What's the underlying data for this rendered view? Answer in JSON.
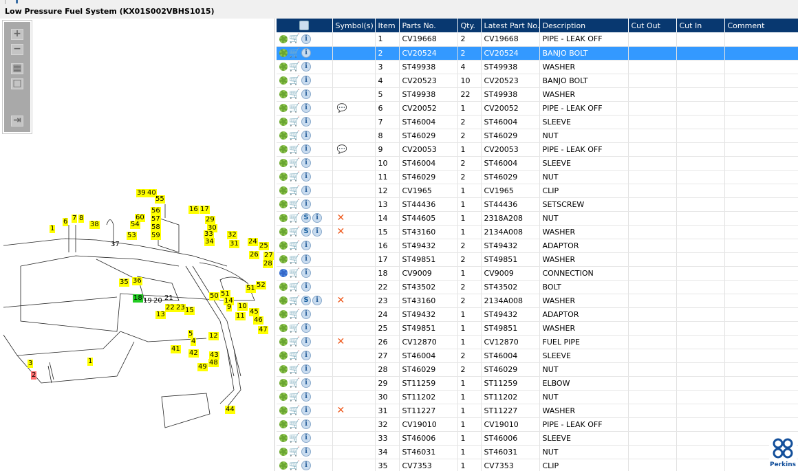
{
  "window": {
    "title": "Low Pressure Fuel System (KX01S002VBHS1015)"
  },
  "toolbar": {
    "zoom_in": "+",
    "zoom_out": "−",
    "fit": "▦",
    "actual": "□",
    "export": "⇥"
  },
  "diagram": {
    "callouts": [
      "1",
      "6",
      "7",
      "8",
      "38",
      "39",
      "40",
      "55",
      "56",
      "60",
      "54",
      "57",
      "58",
      "53",
      "59",
      "16",
      "17",
      "29",
      "30",
      "33",
      "34",
      "32",
      "31",
      "24",
      "25",
      "26",
      "27",
      "28",
      "35",
      "36",
      "37",
      "18",
      "19",
      "20",
      "21",
      "22",
      "23",
      "50",
      "51",
      "51",
      "52",
      "14",
      "9",
      "10",
      "13",
      "15",
      "11",
      "45",
      "46",
      "47",
      "5",
      "4",
      "12",
      "41",
      "42",
      "43",
      "48",
      "49",
      "44",
      "3",
      "2",
      "1"
    ]
  },
  "table": {
    "headers": [
      "",
      "Symbol(s)",
      "Item",
      "Parts No.",
      "Qty.",
      "Latest Part No.",
      "Description",
      "Cut Out",
      "Cut In",
      "Comment"
    ],
    "selected_item": "2",
    "rows": [
      {
        "item": "1",
        "part": "CV19668",
        "qty": "2",
        "latest": "CV19668",
        "desc": "PIPE - LEAK OFF"
      },
      {
        "item": "2",
        "part": "CV20524",
        "qty": "2",
        "latest": "CV20524",
        "desc": "BANJO BOLT"
      },
      {
        "item": "3",
        "part": "ST49938",
        "qty": "4",
        "latest": "ST49938",
        "desc": "WASHER"
      },
      {
        "item": "4",
        "part": "CV20523",
        "qty": "10",
        "latest": "CV20523",
        "desc": "BANJO BOLT"
      },
      {
        "item": "5",
        "part": "ST49938",
        "qty": "22",
        "latest": "ST49938",
        "desc": "WASHER"
      },
      {
        "item": "6",
        "part": "CV20052",
        "qty": "1",
        "latest": "CV20052",
        "desc": "PIPE - LEAK OFF",
        "symbol": "note"
      },
      {
        "item": "7",
        "part": "ST46004",
        "qty": "2",
        "latest": "ST46004",
        "desc": "SLEEVE"
      },
      {
        "item": "8",
        "part": "ST46029",
        "qty": "2",
        "latest": "ST46029",
        "desc": "NUT"
      },
      {
        "item": "9",
        "part": "CV20053",
        "qty": "1",
        "latest": "CV20053",
        "desc": "PIPE - LEAK OFF",
        "symbol": "note"
      },
      {
        "item": "10",
        "part": "ST46004",
        "qty": "2",
        "latest": "ST46004",
        "desc": "SLEEVE"
      },
      {
        "item": "11",
        "part": "ST46029",
        "qty": "2",
        "latest": "ST46029",
        "desc": "NUT"
      },
      {
        "item": "12",
        "part": "CV1965",
        "qty": "1",
        "latest": "CV1965",
        "desc": "CLIP"
      },
      {
        "item": "13",
        "part": "ST44436",
        "qty": "1",
        "latest": "ST44436",
        "desc": "SETSCREW"
      },
      {
        "item": "14",
        "part": "ST44605",
        "qty": "1",
        "latest": "2318A208",
        "desc": "NUT",
        "symbol": "x",
        "s": true
      },
      {
        "item": "15",
        "part": "ST43160",
        "qty": "1",
        "latest": "2134A008",
        "desc": "WASHER",
        "symbol": "x",
        "s": true
      },
      {
        "item": "16",
        "part": "ST49432",
        "qty": "2",
        "latest": "ST49432",
        "desc": "ADAPTOR"
      },
      {
        "item": "17",
        "part": "ST49851",
        "qty": "2",
        "latest": "ST49851",
        "desc": "WASHER"
      },
      {
        "item": "18",
        "part": "CV9009",
        "qty": "1",
        "latest": "CV9009",
        "desc": "CONNECTION",
        "assembly": true
      },
      {
        "item": "22",
        "part": "ST43502",
        "qty": "2",
        "latest": "ST43502",
        "desc": "BOLT"
      },
      {
        "item": "23",
        "part": "ST43160",
        "qty": "2",
        "latest": "2134A008",
        "desc": "WASHER",
        "symbol": "x",
        "s": true
      },
      {
        "item": "24",
        "part": "ST49432",
        "qty": "1",
        "latest": "ST49432",
        "desc": "ADAPTOR"
      },
      {
        "item": "25",
        "part": "ST49851",
        "qty": "1",
        "latest": "ST49851",
        "desc": "WASHER"
      },
      {
        "item": "26",
        "part": "CV12870",
        "qty": "1",
        "latest": "CV12870",
        "desc": "FUEL PIPE",
        "symbol": "x"
      },
      {
        "item": "27",
        "part": "ST46004",
        "qty": "2",
        "latest": "ST46004",
        "desc": "SLEEVE"
      },
      {
        "item": "28",
        "part": "ST46029",
        "qty": "2",
        "latest": "ST46029",
        "desc": "NUT"
      },
      {
        "item": "29",
        "part": "ST11259",
        "qty": "1",
        "latest": "ST11259",
        "desc": "ELBOW"
      },
      {
        "item": "30",
        "part": "ST11202",
        "qty": "1",
        "latest": "ST11202",
        "desc": "NUT"
      },
      {
        "item": "31",
        "part": "ST11227",
        "qty": "1",
        "latest": "ST11227",
        "desc": "WASHER",
        "symbol": "x"
      },
      {
        "item": "32",
        "part": "CV19010",
        "qty": "1",
        "latest": "CV19010",
        "desc": "PIPE - LEAK OFF"
      },
      {
        "item": "33",
        "part": "ST46006",
        "qty": "1",
        "latest": "ST46006",
        "desc": "SLEEVE"
      },
      {
        "item": "34",
        "part": "ST46031",
        "qty": "1",
        "latest": "ST46031",
        "desc": "NUT"
      },
      {
        "item": "35",
        "part": "CV7353",
        "qty": "1",
        "latest": "CV7353",
        "desc": "CLIP"
      }
    ]
  },
  "brand": {
    "name": "Perkins",
    "color": "#14509b"
  },
  "colors": {
    "header": "#083870",
    "selected": "#3399ff",
    "callout": "#ffff00"
  }
}
